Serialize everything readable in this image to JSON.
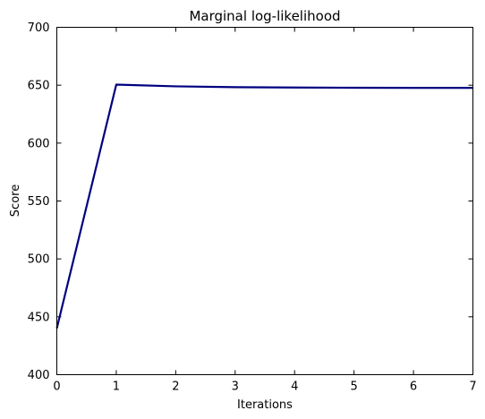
{
  "chart_data": {
    "type": "line",
    "title": "Marginal log-likelihood",
    "xlabel": "Iterations",
    "ylabel": "Score",
    "xlim": [
      0,
      7
    ],
    "ylim": [
      400,
      700
    ],
    "xticks": [
      0,
      1,
      2,
      3,
      4,
      5,
      6,
      7
    ],
    "yticks": [
      400,
      450,
      500,
      550,
      600,
      650,
      700
    ],
    "grid": false,
    "legend": "none",
    "series": [
      {
        "color": "#000080",
        "x": [
          0,
          1,
          2,
          3,
          4,
          5,
          6,
          7
        ],
        "y": [
          440,
          650.5,
          649,
          648.3,
          648,
          647.8,
          647.7,
          647.7
        ]
      }
    ]
  }
}
